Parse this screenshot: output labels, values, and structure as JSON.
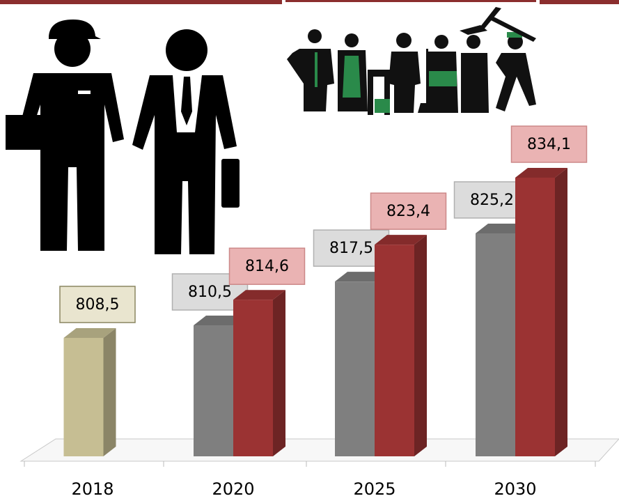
{
  "chart_data": {
    "type": "bar3d",
    "categories": [
      "2018",
      "2020",
      "2025",
      "2030"
    ],
    "series": [
      {
        "color": "#c6be93",
        "values": [
          808.5,
          null,
          null,
          null
        ],
        "value_labels": [
          "808,5",
          null,
          null,
          null
        ]
      },
      {
        "color": "#7f7f7f",
        "values": [
          null,
          810.5,
          817.5,
          825.2
        ],
        "value_labels": [
          null,
          "810,5",
          "817,5",
          "825,2"
        ]
      },
      {
        "color": "#9b3333",
        "values": [
          null,
          814.6,
          823.4,
          834.1
        ],
        "value_labels": [
          null,
          "814,6",
          "823,4",
          "834,1"
        ]
      }
    ]
  }
}
